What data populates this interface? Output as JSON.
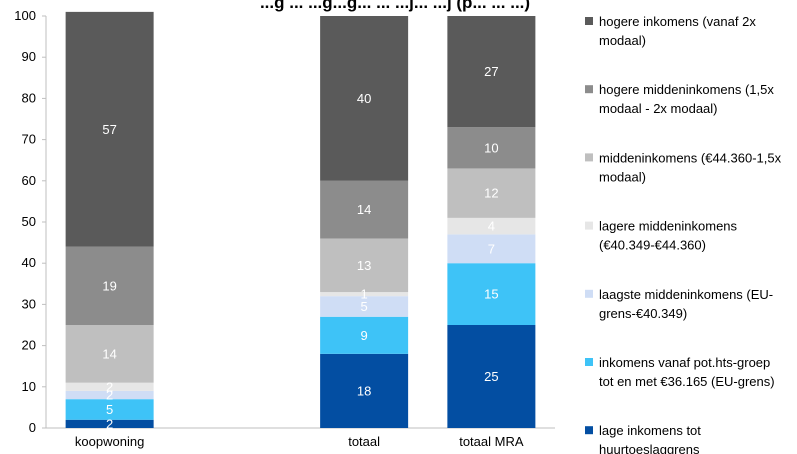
{
  "chart_data": {
    "type": "bar",
    "stacked": true,
    "title": "...g ... ...g...g... ...  ...j...  ...j (p... ... ...)",
    "categories": [
      "koopwoning",
      "",
      "totaal",
      "totaal MRA"
    ],
    "ylim": [
      0,
      100
    ],
    "yticks": [
      0,
      10,
      20,
      30,
      40,
      50,
      60,
      70,
      80,
      90,
      100
    ],
    "grid": false,
    "legend_position": "right",
    "series": [
      {
        "name": "lage inkomens tot huurtoeslaggrens",
        "color": "#034EA2",
        "label_color": "#ffffff",
        "values": [
          2,
          null,
          18,
          25
        ]
      },
      {
        "name": "inkomens vanaf pot.hts-groep tot en met €36.165 (EU-grens)",
        "color": "#3EC3F7",
        "label_color": "#ffffff",
        "values": [
          5,
          null,
          9,
          15
        ]
      },
      {
        "name": "laagste middeninkomens (EU-grens-€40.349)",
        "color": "#CFDDF5",
        "label_color": "#ffffff",
        "values": [
          2,
          null,
          5,
          7
        ]
      },
      {
        "name": "lagere middeninkomens (€40.349-€44.360)",
        "color": "#E6E6E6",
        "label_color": "#ffffff",
        "values": [
          2,
          null,
          1,
          4
        ]
      },
      {
        "name": "middeninkomens (€44.360-1,5x modaal)",
        "color": "#BFBFBF",
        "label_color": "#ffffff",
        "values": [
          14,
          null,
          13,
          12
        ]
      },
      {
        "name": "hogere middeninkomens (1,5x modaal - 2x modaal)",
        "color": "#8C8C8C",
        "label_color": "#ffffff",
        "values": [
          19,
          null,
          14,
          10
        ]
      },
      {
        "name": "hogere inkomens (vanaf 2x modaal)",
        "color": "#5A5A5A",
        "label_color": "#ffffff",
        "values": [
          57,
          null,
          40,
          27
        ]
      }
    ]
  },
  "legend": {
    "items": [
      {
        "color": "#5A5A5A",
        "lines": [
          "hogere inkomens (vanaf 2x",
          "modaal)"
        ]
      },
      {
        "color": "#8C8C8C",
        "lines": [
          "hogere middeninkomens (1,5x",
          "modaal - 2x modaal)"
        ]
      },
      {
        "color": "#BFBFBF",
        "lines": [
          "middeninkomens (€44.360-1,5x",
          "modaal)"
        ]
      },
      {
        "color": "#E6E6E6",
        "lines": [
          "lagere middeninkomens",
          "(€40.349-€44.360)"
        ]
      },
      {
        "color": "#CFDDF5",
        "lines": [
          "laagste middeninkomens (EU-",
          "grens-€40.349)"
        ]
      },
      {
        "color": "#3EC3F7",
        "lines": [
          "inkomens vanaf pot.hts-groep",
          "tot en met €36.165 (EU-grens)"
        ]
      },
      {
        "color": "#034EA2",
        "lines": [
          "lage inkomens tot",
          "huurtoeslaggrens"
        ]
      }
    ]
  }
}
